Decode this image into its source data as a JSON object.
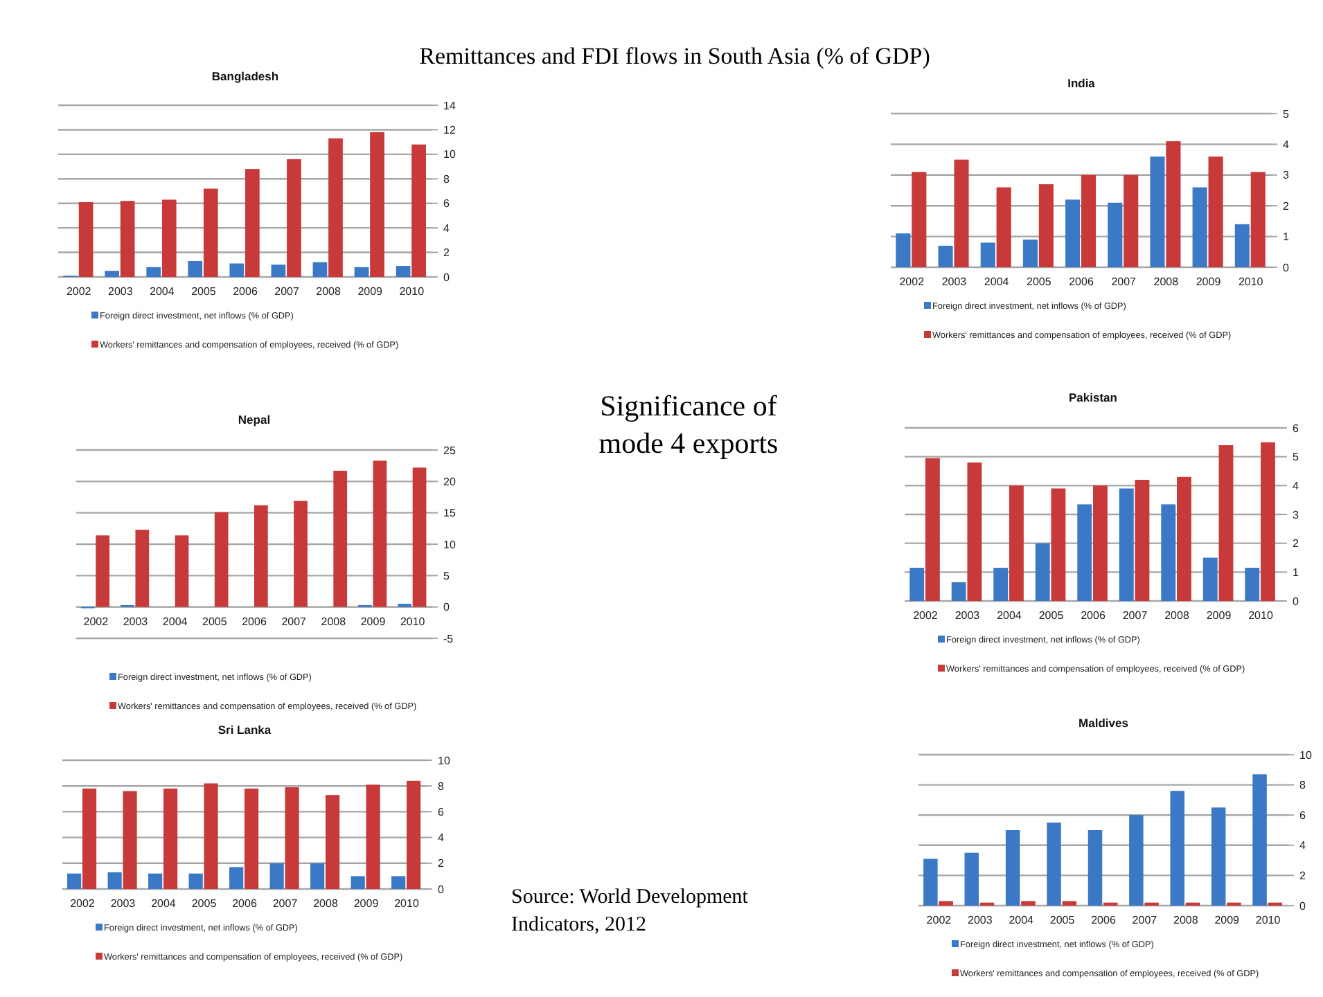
{
  "chart_data": [
    {
      "type": "other",
      "title": "Remittances and FDI flows in South Asia (% of GDP)",
      "subtitle": "Significance of mode 4 exports",
      "annotations": [
        "Source: World Development Indicators, 2012"
      ]
    },
    {
      "type": "bar",
      "title": "Bangladesh",
      "categories": [
        "2002",
        "2003",
        "2004",
        "2005",
        "2006",
        "2007",
        "2008",
        "2009",
        "2010"
      ],
      "series": [
        {
          "name": "Foreign direct investment, net inflows (% of GDP)",
          "color": "#3b78c6",
          "values": [
            0.1,
            0.5,
            0.8,
            1.3,
            1.1,
            1.0,
            1.2,
            0.8,
            0.9
          ]
        },
        {
          "name": "Workers' remittances and compensation of employees, received (% of GDP)",
          "color": "#c83a3a",
          "values": [
            6.1,
            6.2,
            6.3,
            7.2,
            8.8,
            9.6,
            11.3,
            11.8,
            10.8
          ]
        }
      ],
      "ylim": [
        0,
        14
      ],
      "yticks": [
        0,
        2,
        4,
        6,
        8,
        10,
        12,
        14
      ],
      "grid": "y",
      "legend": "bottom"
    },
    {
      "type": "bar",
      "title": "India",
      "categories": [
        "2002",
        "2003",
        "2004",
        "2005",
        "2006",
        "2007",
        "2008",
        "2009",
        "2010"
      ],
      "series": [
        {
          "name": "Foreign direct investment, net inflows (% of GDP)",
          "color": "#3b78c6",
          "values": [
            1.1,
            0.7,
            0.8,
            0.9,
            2.2,
            2.1,
            3.6,
            2.6,
            1.4
          ]
        },
        {
          "name": "Workers' remittances and compensation of employees, received (% of GDP)",
          "color": "#c83a3a",
          "values": [
            3.1,
            3.5,
            2.6,
            2.7,
            3.0,
            3.0,
            4.1,
            3.6,
            3.1
          ]
        }
      ],
      "ylim": [
        0,
        5
      ],
      "yticks": [
        0,
        1,
        2,
        3,
        4,
        5
      ],
      "grid": "y",
      "legend": "bottom"
    },
    {
      "type": "bar",
      "title": "Nepal",
      "categories": [
        "2002",
        "2003",
        "2004",
        "2005",
        "2006",
        "2007",
        "2008",
        "2009",
        "2010"
      ],
      "series": [
        {
          "name": "Foreign direct investment, net inflows (% of GDP)",
          "color": "#3b78c6",
          "values": [
            -0.2,
            0.3,
            0,
            0,
            0,
            0,
            0,
            0.3,
            0.5
          ]
        },
        {
          "name": "Workers' remittances and compensation of employees, received (% of GDP)",
          "color": "#c83a3a",
          "values": [
            11.4,
            12.3,
            11.4,
            15.1,
            16.2,
            16.9,
            21.7,
            23.3,
            22.2
          ]
        }
      ],
      "ylim": [
        -5,
        25
      ],
      "yticks": [
        -5,
        0,
        5,
        10,
        15,
        20,
        25
      ],
      "grid": "y",
      "legend": "bottom"
    },
    {
      "type": "bar",
      "title": "Pakistan",
      "categories": [
        "2002",
        "2003",
        "2004",
        "2005",
        "2006",
        "2007",
        "2008",
        "2009",
        "2010"
      ],
      "series": [
        {
          "name": "Foreign direct investment, net inflows (% of GDP)",
          "color": "#3b78c6",
          "values": [
            1.15,
            0.65,
            1.15,
            2.0,
            3.35,
            3.9,
            3.35,
            1.5,
            1.15
          ]
        },
        {
          "name": "Workers' remittances and compensation of employees, received (% of GDP)",
          "color": "#c83a3a",
          "values": [
            4.95,
            4.8,
            4.0,
            3.9,
            4.0,
            4.2,
            4.3,
            5.4,
            5.5
          ]
        }
      ],
      "ylim": [
        0,
        6
      ],
      "yticks": [
        0,
        1,
        2,
        3,
        4,
        5,
        6
      ],
      "grid": "y",
      "legend": "bottom"
    },
    {
      "type": "bar",
      "title": "Sri Lanka",
      "categories": [
        "2002",
        "2003",
        "2004",
        "2005",
        "2006",
        "2007",
        "2008",
        "2009",
        "2010"
      ],
      "series": [
        {
          "name": "Foreign direct investment, net inflows (% of GDP)",
          "color": "#3b78c6",
          "values": [
            1.2,
            1.3,
            1.2,
            1.2,
            1.7,
            2.0,
            2.0,
            1.0,
            1.0
          ]
        },
        {
          "name": "Workers' remittances and compensation of employees, received (% of GDP)",
          "color": "#c83a3a",
          "values": [
            7.8,
            7.6,
            7.8,
            8.2,
            7.8,
            7.9,
            7.3,
            8.1,
            8.4
          ]
        }
      ],
      "ylim": [
        0,
        10
      ],
      "yticks": [
        0,
        2,
        4,
        6,
        8,
        10
      ],
      "grid": "y",
      "legend": "bottom"
    },
    {
      "type": "bar",
      "title": "Maldives",
      "categories": [
        "2002",
        "2003",
        "2004",
        "2005",
        "2006",
        "2007",
        "2008",
        "2009",
        "2010"
      ],
      "series": [
        {
          "name": "Foreign direct investment, net inflows (% of GDP)",
          "color": "#3b78c6",
          "values": [
            3.1,
            3.5,
            5.0,
            5.5,
            5.0,
            6.0,
            7.6,
            6.5,
            8.7
          ]
        },
        {
          "name": "Workers' remittances and compensation of employees, received (% of GDP)",
          "color": "#c83a3a",
          "values": [
            0.3,
            0.2,
            0.3,
            0.3,
            0.2,
            0.2,
            0.2,
            0.2,
            0.2
          ]
        }
      ],
      "ylim": [
        0,
        10
      ],
      "yticks": [
        0,
        2,
        4,
        6,
        8,
        10
      ],
      "grid": "y",
      "legend": "bottom"
    }
  ]
}
